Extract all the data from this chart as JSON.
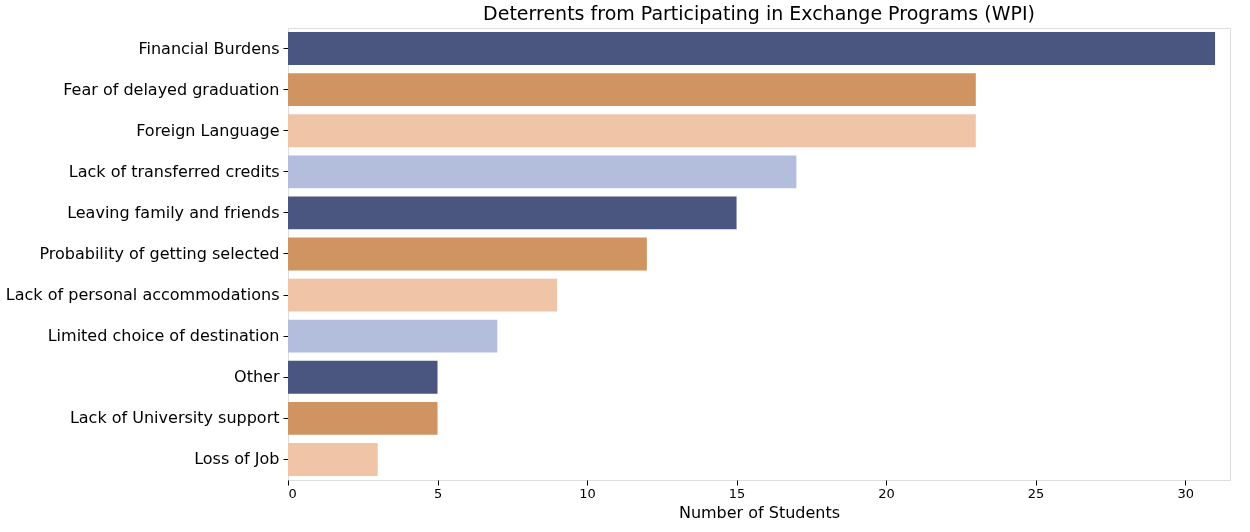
{
  "chart_data": {
    "type": "bar",
    "orientation": "horizontal",
    "title": "Deterrents from Participating in Exchange Programs (WPI)",
    "xlabel": "Number of Students",
    "categories": [
      "Financial Burdens",
      "Fear of delayed graduation",
      "Foreign Language",
      "Lack of transferred credits",
      "Leaving family and friends",
      "Probability of getting selected",
      "Lack of personal accommodations",
      "Limited choice of destination",
      "Other",
      "Lack of University support",
      "Loss of Job"
    ],
    "values": [
      31,
      23,
      23,
      17,
      15,
      12,
      9,
      7,
      5,
      5,
      3
    ],
    "colors": [
      "#4a5680",
      "#d09463",
      "#f0c4a6",
      "#b3bedd",
      "#4a5680",
      "#d09463",
      "#f0c4a6",
      "#b3bedd",
      "#4a5680",
      "#d09463",
      "#f0c4a6"
    ],
    "xlim": [
      0,
      31.5
    ],
    "xticks": [
      0,
      5,
      10,
      15,
      20,
      25,
      30
    ],
    "grid": false
  }
}
